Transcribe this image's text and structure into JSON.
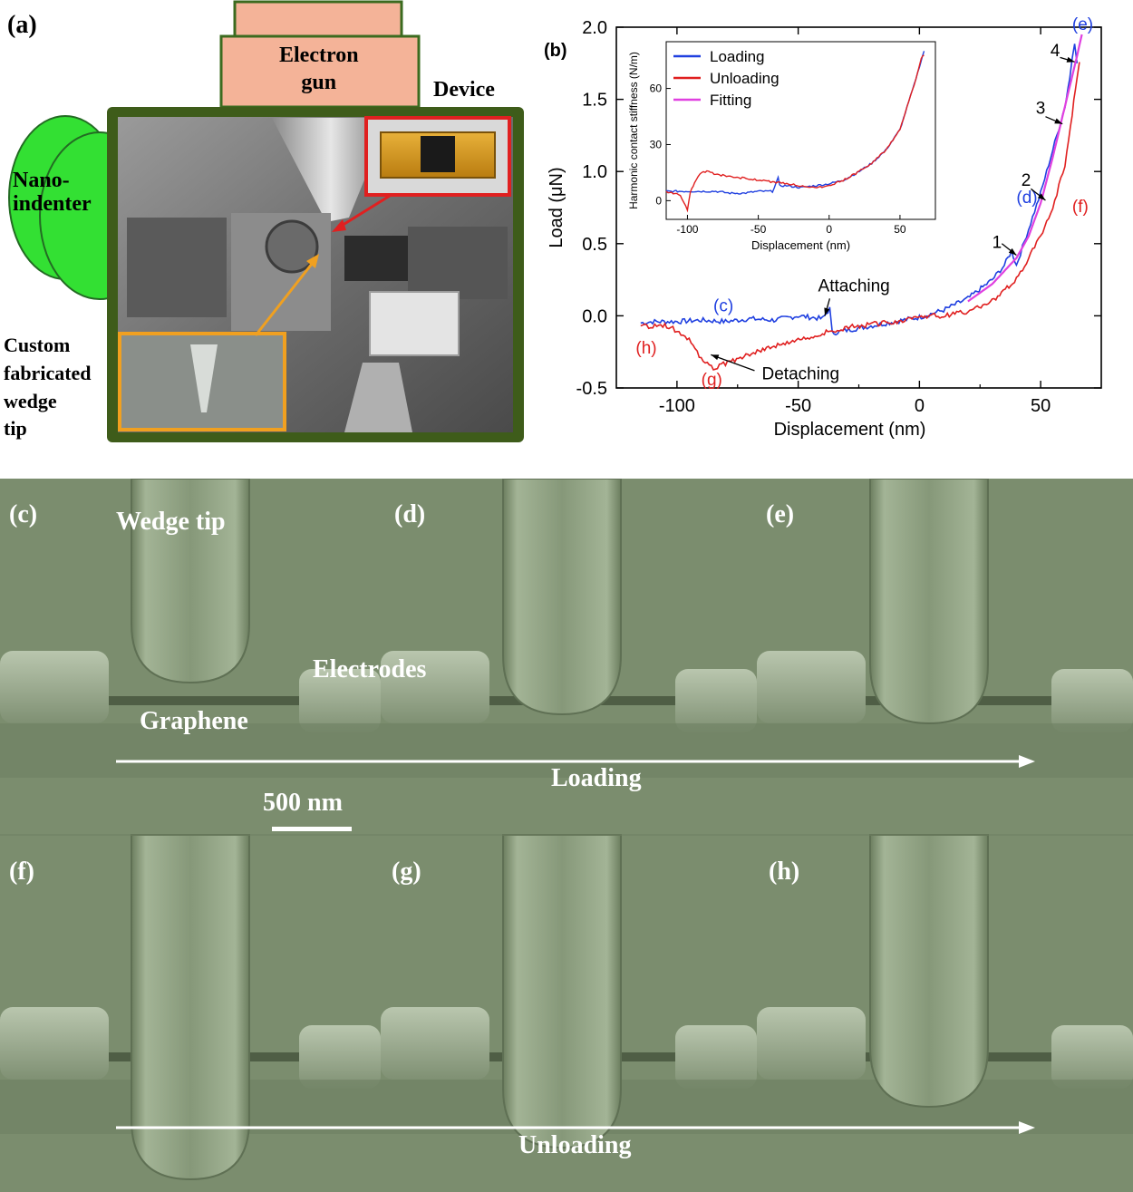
{
  "panel_a": {
    "label": "(a)",
    "electron_gun": "Electron gun",
    "electron_gun_line1": "Electron",
    "electron_gun_line2": "gun",
    "device": "Device",
    "nanoindenter_line1": "Nano-",
    "nanoindenter_line2": "indenter",
    "tip_line1": "Custom",
    "tip_line2": "fabricated",
    "tip_line3": "wedge",
    "tip_line4": "tip",
    "colors": {
      "gun": "#f4b398",
      "gun_border": "#3b6b1f",
      "indenter": "#33e033",
      "frame": "#3e5c1a",
      "device_box": "#e02020",
      "tip_box": "#f0a020"
    }
  },
  "panel_b": {
    "label": "(b)",
    "annotations": {
      "c": "(c)",
      "d": "(d)",
      "e": "(e)",
      "f": "(f)",
      "g": "(g)",
      "h": "(h)",
      "attaching": "Attaching",
      "detaching": "Detaching",
      "n1": "1",
      "n2": "2",
      "n3": "3",
      "n4": "4"
    },
    "inset_legend": [
      "Loading",
      "Unloading",
      "Fitting"
    ],
    "inset_xlabel": "Displacement (nm)",
    "inset_ylabel": "Harmonic contact stiffness (N/m)"
  },
  "chart_data": [
    {
      "type": "line",
      "xlabel": "Displacement (nm)",
      "ylabel": "Load (μN)",
      "xlim": [
        -125,
        75
      ],
      "ylim": [
        -0.5,
        2.0
      ],
      "xticks": [
        -100,
        -50,
        0,
        50
      ],
      "yticks": [
        -0.5,
        0.0,
        0.5,
        1.0,
        1.5,
        2.0
      ],
      "series": [
        {
          "name": "Loading",
          "color": "#2040e0",
          "x": [
            -115,
            -110,
            -100,
            -90,
            -80,
            -70,
            -60,
            -50,
            -40,
            -37,
            -36,
            -30,
            -20,
            -10,
            0,
            10,
            20,
            30,
            35,
            38,
            40,
            45,
            50,
            55,
            60,
            62,
            63,
            64,
            65
          ],
          "y": [
            -0.05,
            -0.04,
            -0.04,
            -0.03,
            -0.04,
            -0.02,
            -0.03,
            0.0,
            -0.02,
            0.05,
            -0.12,
            -0.1,
            -0.07,
            -0.04,
            -0.01,
            0.04,
            0.12,
            0.25,
            0.35,
            0.45,
            0.35,
            0.6,
            0.85,
            1.15,
            1.45,
            1.65,
            1.8,
            1.9,
            1.75
          ]
        },
        {
          "name": "Unloading",
          "color": "#e02020",
          "x": [
            66,
            65,
            63,
            60,
            55,
            50,
            45,
            40,
            30,
            20,
            10,
            0,
            -10,
            -20,
            -30,
            -40,
            -50,
            -60,
            -70,
            -80,
            -85,
            -90,
            -95,
            -100,
            -105,
            -110,
            -115
          ],
          "y": [
            1.75,
            1.65,
            1.4,
            1.05,
            0.75,
            0.55,
            0.4,
            0.25,
            0.1,
            0.03,
            0.0,
            0.0,
            -0.04,
            -0.06,
            -0.08,
            -0.12,
            -0.17,
            -0.21,
            -0.26,
            -0.33,
            -0.37,
            -0.3,
            -0.16,
            -0.1,
            -0.07,
            -0.07,
            -0.07
          ]
        },
        {
          "name": "Fitting",
          "color": "#e040e0",
          "x": [
            20,
            30,
            40,
            45,
            50,
            55,
            60,
            65,
            67
          ],
          "y": [
            0.1,
            0.22,
            0.4,
            0.55,
            0.78,
            1.1,
            1.45,
            1.8,
            1.95
          ]
        }
      ]
    },
    {
      "type": "line",
      "xlabel": "Displacement (nm)",
      "ylabel": "Harmonic contact stiffness (N/m)",
      "xlim": [
        -115,
        75
      ],
      "ylim": [
        -10,
        85
      ],
      "xticks": [
        -100,
        -50,
        0,
        50
      ],
      "yticks": [
        0,
        30,
        60
      ],
      "series": [
        {
          "name": "Loading",
          "color": "#2040e0",
          "x": [
            -115,
            -100,
            -90,
            -80,
            -70,
            -60,
            -50,
            -40,
            -36,
            -35,
            -30,
            -20,
            -10,
            0,
            10,
            20,
            30,
            40,
            50,
            55,
            60,
            65,
            67
          ],
          "y": [
            5,
            5,
            5,
            5,
            4,
            4,
            5,
            5,
            12,
            8,
            8,
            7,
            8,
            9,
            11,
            15,
            20,
            27,
            38,
            50,
            62,
            75,
            80
          ]
        },
        {
          "name": "Unloading",
          "color": "#e02020",
          "x": [
            67,
            65,
            60,
            55,
            50,
            40,
            30,
            20,
            10,
            0,
            -10,
            -20,
            -30,
            -40,
            -50,
            -60,
            -70,
            -80,
            -85,
            -90,
            -95,
            -98,
            -100,
            -105,
            -115
          ],
          "y": [
            78,
            76,
            62,
            50,
            38,
            27,
            20,
            15,
            11,
            8,
            7,
            8,
            9,
            10,
            11,
            12,
            13,
            14,
            16,
            15,
            10,
            4,
            -5,
            3,
            5
          ]
        }
      ]
    }
  ],
  "sem": {
    "labels": {
      "c": "(c)",
      "d": "(d)",
      "e": "(e)",
      "f": "(f)",
      "g": "(g)",
      "h": "(h)"
    },
    "wedge_tip": "Wedge tip",
    "electrodes": "Electrodes",
    "graphene": "Graphene",
    "scale_bar": "500 nm",
    "loading": "Loading",
    "unloading": "Unloading",
    "colors": {
      "background": "#7b8d6e",
      "tip": "#86987a",
      "text": "#ffffff"
    }
  }
}
